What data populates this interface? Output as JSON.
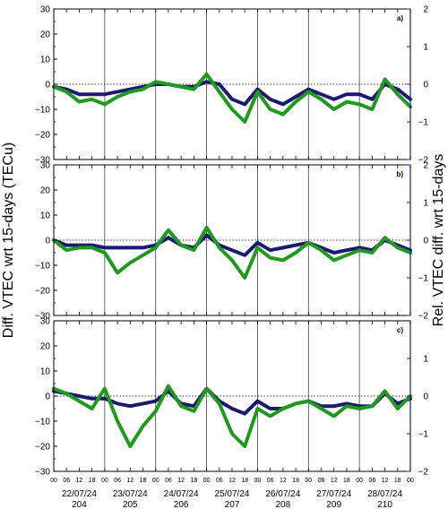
{
  "figure": {
    "ylabel_left": "Diff. VTEC wrt 15-days (TECu)",
    "ylabel_right": "Rel. VTEC diff. wrt 15-days"
  },
  "chart_data": {
    "type": "line",
    "x_ticks_hours": [
      "00",
      "06",
      "12",
      "18",
      "00",
      "06",
      "12",
      "18",
      "00",
      "06",
      "12",
      "18",
      "00",
      "06",
      "12",
      "18",
      "00",
      "06",
      "12",
      "18",
      "00",
      "06",
      "12",
      "18",
      "00",
      "06",
      "12",
      "18",
      "00"
    ],
    "dates": [
      "22/07/24",
      "23/07/24",
      "24/07/24",
      "25/07/24",
      "26/07/24",
      "27/07/24",
      "28/07/24"
    ],
    "doys": [
      "204",
      "205",
      "206",
      "207",
      "208",
      "209",
      "210"
    ],
    "xlim_hours": [
      0,
      168
    ],
    "panels": [
      {
        "label": "a)",
        "ylim_left": [
          -30,
          30
        ],
        "yticks_left": [
          "30",
          "20",
          "10",
          "0",
          "−10",
          "−20",
          "−30"
        ],
        "ylim_right": [
          -2,
          2
        ],
        "yticks_right": [
          "2",
          "1",
          "0",
          "−1",
          "−2"
        ],
        "series": [
          {
            "color": "#1a1a6e",
            "x": [
              0,
              6,
              12,
              18,
              24,
              30,
              36,
              42,
              48,
              54,
              60,
              66,
              72,
              78,
              84,
              90,
              96,
              102,
              108,
              114,
              120,
              126,
              132,
              138,
              144,
              150,
              156,
              162,
              168
            ],
            "y": [
              -1,
              -2,
              -4,
              -4,
              -4,
              -3,
              -2,
              -1,
              0,
              0,
              -1,
              -1,
              1,
              0,
              -6,
              -8,
              -2,
              -6,
              -8,
              -5,
              -2,
              -4,
              -6,
              -4,
              -4,
              -6,
              0,
              -2,
              -6
            ]
          },
          {
            "color": "#1f9a1f",
            "x": [
              0,
              6,
              12,
              18,
              24,
              30,
              36,
              42,
              48,
              54,
              60,
              66,
              72,
              78,
              84,
              90,
              96,
              102,
              108,
              114,
              120,
              126,
              132,
              138,
              144,
              150,
              156,
              162,
              168
            ],
            "y": [
              -1,
              -3,
              -7,
              -6,
              -8,
              -5,
              -3,
              -2,
              1,
              0,
              -1,
              -2,
              4,
              -3,
              -10,
              -15,
              -3,
              -10,
              -12,
              -7,
              -3,
              -6,
              -10,
              -7,
              -8,
              -10,
              2,
              -4,
              -9
            ]
          }
        ]
      },
      {
        "label": "b)",
        "ylim_left": [
          -30,
          30
        ],
        "yticks_left": [
          "30",
          "20",
          "10",
          "0",
          "−10",
          "−20",
          "−30"
        ],
        "ylim_right": [
          -2,
          2
        ],
        "yticks_right": [
          "2",
          "1",
          "0",
          "−1",
          "−2"
        ],
        "series": [
          {
            "color": "#1a1a6e",
            "x": [
              0,
              6,
              12,
              18,
              24,
              30,
              36,
              42,
              48,
              54,
              60,
              66,
              72,
              78,
              84,
              90,
              96,
              102,
              108,
              114,
              120,
              126,
              132,
              138,
              144,
              150,
              156,
              162,
              168
            ],
            "y": [
              0,
              -2,
              -2,
              -2,
              -3,
              -3,
              -3,
              -3,
              -2,
              1,
              -2,
              -3,
              2,
              -2,
              -4,
              -6,
              -1,
              -4,
              -3,
              -2,
              -1,
              -3,
              -5,
              -4,
              -3,
              -4,
              0,
              -2,
              -4
            ]
          },
          {
            "color": "#1f9a1f",
            "x": [
              0,
              6,
              12,
              18,
              24,
              30,
              36,
              42,
              48,
              54,
              60,
              66,
              72,
              78,
              84,
              90,
              96,
              102,
              108,
              114,
              120,
              126,
              132,
              138,
              144,
              150,
              156,
              162,
              168
            ],
            "y": [
              0,
              -4,
              -3,
              -3,
              -5,
              -13,
              -9,
              -6,
              -3,
              4,
              -2,
              -4,
              5,
              -3,
              -8,
              -15,
              -3,
              -7,
              -8,
              -5,
              -1,
              -4,
              -8,
              -6,
              -4,
              -5,
              1,
              -3,
              -5
            ]
          }
        ]
      },
      {
        "label": "c)",
        "ylim_left": [
          -30,
          30
        ],
        "yticks_left": [
          "30",
          "20",
          "10",
          "0",
          "−10",
          "−20",
          "−30"
        ],
        "ylim_right": [
          -2,
          2
        ],
        "yticks_right": [
          "1",
          "0",
          "−1",
          "−2"
        ],
        "series": [
          {
            "color": "#1a1a6e",
            "x": [
              0,
              6,
              12,
              18,
              24,
              30,
              36,
              42,
              48,
              54,
              60,
              66,
              72,
              78,
              84,
              90,
              96,
              102,
              108,
              114,
              120,
              126,
              132,
              138,
              144,
              150,
              156,
              162,
              168
            ],
            "y": [
              2,
              1,
              0,
              -1,
              -1,
              -3,
              -4,
              -3,
              -2,
              2,
              -3,
              -4,
              3,
              -2,
              -5,
              -7,
              -2,
              -5,
              -5,
              -3,
              -2,
              -4,
              -4,
              -3,
              -4,
              -4,
              1,
              -3,
              -1
            ]
          },
          {
            "color": "#1f9a1f",
            "x": [
              0,
              6,
              12,
              18,
              24,
              30,
              36,
              42,
              48,
              54,
              60,
              66,
              72,
              78,
              84,
              90,
              96,
              102,
              108,
              114,
              120,
              126,
              132,
              138,
              144,
              150,
              156,
              162,
              168
            ],
            "y": [
              3,
              1,
              -2,
              -5,
              3,
              -10,
              -20,
              -12,
              -6,
              4,
              -4,
              -6,
              3,
              -3,
              -15,
              -20,
              -5,
              -8,
              -5,
              -3,
              -2,
              -5,
              -8,
              -4,
              -5,
              -4,
              2,
              -5,
              0
            ]
          }
        ]
      }
    ]
  }
}
